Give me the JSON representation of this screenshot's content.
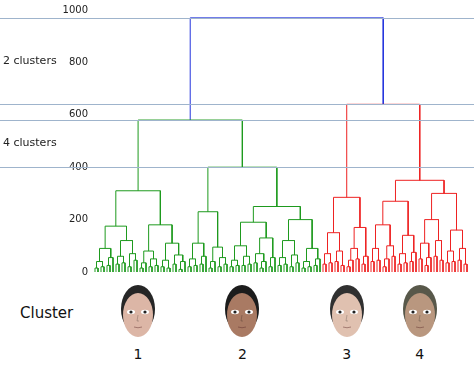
{
  "chart_data": {
    "type": "dendrogram",
    "ylim": [
      0,
      1000
    ],
    "yticks": [
      0,
      200,
      400,
      600,
      800,
      1000
    ],
    "tick_labels": "y",
    "grid": false,
    "height": 970,
    "color": "#2233dd",
    "branches": [
      {
        "color": "#1e9a1e",
        "tree": [
          580,
          [
            310,
            [
              175,
              [
                90,
                [
                  40,
                  [
                    15,
                    0,
                    0
                  ],
                  [
                    20,
                    0,
                    0
                  ]
                ],
                [
                  55,
                  [
                    25,
                    0,
                    0
                  ],
                  0
                ]
              ],
              [
                120,
                [
                  60,
                  [
                    30,
                    0,
                    0
                  ],
                  [
                    35,
                    0,
                    0
                  ]
                ],
                [
                  70,
                  [
                    20,
                    0,
                    0
                  ],
                  [
                    45,
                    0,
                    0
                  ]
                ]
              ]
            ],
            [
              180,
              [
                80,
                [
                  35,
                  [
                    15,
                    0,
                    0
                  ],
                  0
                ],
                [
                  50,
                  [
                    20,
                    0,
                    0
                  ],
                  [
                    25,
                    0,
                    0
                  ]
                ]
              ],
              [
                110,
                [
                  45,
                  [
                    20,
                    0,
                    0
                  ],
                  [
                    15,
                    0,
                    0
                  ]
                ],
                [
                  65,
                  [
                    30,
                    0,
                    0
                  ],
                  [
                    40,
                    [
                      10,
                      0,
                      0
                    ],
                    0
                  ]
                ]
              ]
            ]
          ],
          [
            400,
            [
              230,
              [
                110,
                [
                  50,
                  [
                    20,
                    0,
                    0
                  ],
                  [
                    25,
                    0,
                    0
                  ]
                ],
                [
                  60,
                  [
                    30,
                    0,
                    0
                  ],
                  0
                ]
              ],
              [
                95,
                [
                  40,
                  [
                    15,
                    0,
                    0
                  ],
                  0
                ],
                [
                  55,
                  [
                    20,
                    0,
                    0
                  ],
                  [
                    30,
                    0,
                    0
                  ]
                ]
              ]
            ],
            [
              250,
              [
                190,
                [
                  100,
                  [
                    45,
                    [
                      20,
                      0,
                      0
                    ],
                    [
                      25,
                      0,
                      0
                    ]
                  ],
                  [
                    60,
                    [
                      25,
                      0,
                      0
                    ],
                    [
                      30,
                      0,
                      0
                    ]
                  ]
                ],
                [
                  130,
                  [
                    70,
                    [
                      35,
                      0,
                      0
                    ],
                    [
                      40,
                      [
                        15,
                        0,
                        0
                      ],
                      0
                    ]
                  ],
                  [
                    55,
                    [
                      20,
                      0,
                      0
                    ],
                    0
                  ]
                ]
              ],
              [
                200,
                [
                  120,
                  [
                    55,
                    [
                      25,
                      0,
                      0
                    ],
                    [
                      30,
                      0,
                      0
                    ]
                  ],
                  [
                    65,
                    [
                      20,
                      0,
                      0
                    ],
                    [
                      35,
                      0,
                      0
                    ]
                  ]
                ],
                [
                  90,
                  [
                    40,
                    [
                      15,
                      0,
                      0
                    ],
                    [
                      20,
                      0,
                      0
                    ]
                  ],
                  [
                    50,
                    [
                      25,
                      0,
                      0
                    ],
                    0
                  ]
                ]
              ]
            ]
          ]
        ]
      },
      {
        "color": "#ee2222",
        "tree": [
          640,
          [
            285,
            [
              150,
              [
                70,
                [
                  30,
                  0,
                  0
                ],
                [
                  35,
                  0,
                  0
                ]
              ],
              [
                80,
                [
                  40,
                  0,
                  0
                ],
                [
                  25,
                  0,
                  0
                ]
              ]
            ],
            [
              170,
              [
                90,
                [
                  45,
                  [
                    20,
                    0,
                    0
                  ],
                  0
                ],
                [
                  50,
                  0,
                  0
                ]
              ],
              [
                60,
                [
                  30,
                  0,
                  0
                ],
                0
              ]
            ]
          ],
          [
            350,
            [
              270,
              [
                180,
                [
                  90,
                  [
                    40,
                    0,
                    0
                  ],
                  [
                    45,
                    0,
                    0
                  ]
                ],
                [
                  100,
                  [
                    50,
                    [
                      20,
                      0,
                      0
                    ],
                    0
                  ],
                  [
                    60,
                    0,
                    0
                  ]
                ]
              ],
              [
                140,
                [
                  70,
                  [
                    30,
                    0,
                    0
                  ],
                  [
                    35,
                    0,
                    0
                  ]
                ],
                [
                  75,
                  [
                    40,
                    0,
                    0
                  ],
                  0
                ]
              ]
            ],
            [
              300,
              [
                200,
                [
                  110,
                  [
                    50,
                    0,
                    0
                  ],
                  [
                    55,
                    [
                      25,
                      0,
                      0
                    ],
                    0
                  ]
                ],
                [
                  120,
                  [
                    60,
                    0,
                    0
                  ],
                  [
                    45,
                    0,
                    0
                  ]
                ]
              ],
              [
                160,
                [
                  80,
                  [
                    35,
                    0,
                    0
                  ],
                  [
                    40,
                    0,
                    0
                  ]
                ],
                [
                  90,
                  [
                    45,
                    0,
                    0
                  ],
                  [
                    30,
                    0,
                    0
                  ]
                ]
              ]
            ]
          ]
        ]
      }
    ],
    "bands": [
      {
        "label": "2 clusters",
        "range": [
          640,
          970
        ]
      },
      {
        "label": "4 clusters",
        "range": [
          400,
          580
        ]
      }
    ],
    "cluster_label": "Cluster",
    "clusters": [
      "1",
      "2",
      "3",
      "4"
    ]
  }
}
